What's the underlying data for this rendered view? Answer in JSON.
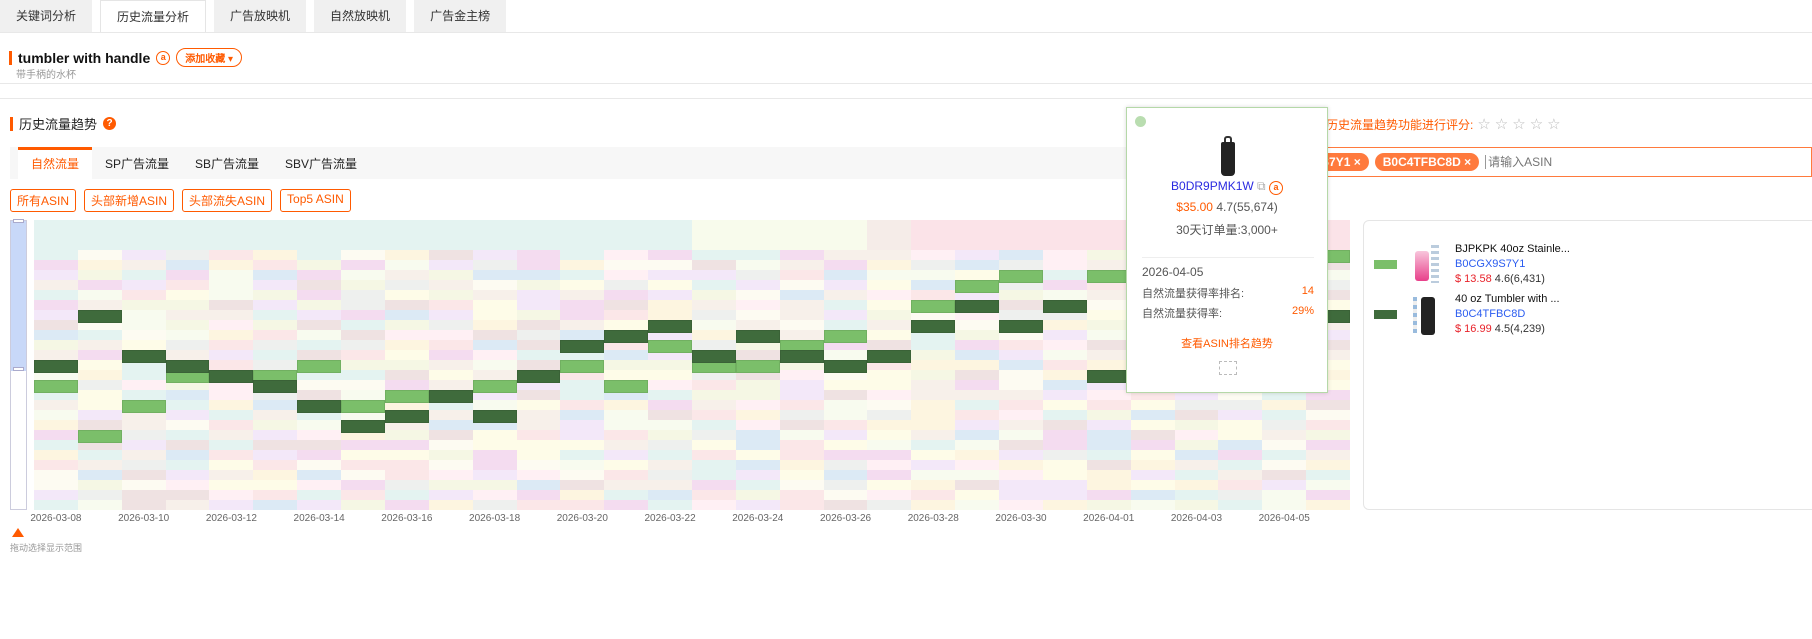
{
  "top_tabs": [
    {
      "label": "关键词分析"
    },
    {
      "label": "历史流量分析",
      "active": true
    },
    {
      "label": "广告放映机"
    },
    {
      "label": "自然放映机"
    },
    {
      "label": "广告金主榜"
    }
  ],
  "keyword": {
    "title": "tumbler with handle",
    "subtitle": "带手柄的水杯",
    "fav_label": "添加收藏 ▾",
    "amazon_icon": "a"
  },
  "section": {
    "title": "历史流量趋势",
    "help": "?"
  },
  "sub_tabs": [
    {
      "label": "自然流量",
      "active": true
    },
    {
      "label": "SP广告流量"
    },
    {
      "label": "SB广告流量"
    },
    {
      "label": "SBV广告流量"
    }
  ],
  "filters": [
    "所有ASIN",
    "头部新增ASIN",
    "头部流失ASIN",
    "Top5 ASIN"
  ],
  "rating": {
    "label": "历史流量趋势功能进行评分:",
    "stars": 5
  },
  "asin_input": {
    "tags": [
      "B0CGX9S7Y1",
      "B0C4TFBC8D"
    ],
    "placeholder": "请输入ASIN"
  },
  "slider_hint": "拖动选择显示范围",
  "colors": {
    "accent": "#ff5a00",
    "series_light": "#7bbf6a",
    "series_dark": "#3f6b3c"
  },
  "chart_data": {
    "type": "heatmap",
    "x": [
      "2026-03-08",
      "2026-03-09",
      "2026-03-10",
      "2026-03-11",
      "2026-03-12",
      "2026-03-13",
      "2026-03-14",
      "2026-03-15",
      "2026-03-16",
      "2026-03-17",
      "2026-03-18",
      "2026-03-19",
      "2026-03-20",
      "2026-03-21",
      "2026-03-22",
      "2026-03-23",
      "2026-03-24",
      "2026-03-25",
      "2026-03-26",
      "2026-03-27",
      "2026-03-28",
      "2026-03-29",
      "2026-03-30",
      "2026-03-31",
      "2026-04-01",
      "2026-04-02",
      "2026-04-03",
      "2026-04-04",
      "2026-04-05",
      "2026-04-06"
    ],
    "xticks": [
      "2026-03-08",
      "2026-03-10",
      "2026-03-12",
      "2026-03-14",
      "2026-03-16",
      "2026-03-18",
      "2026-03-20",
      "2026-03-22",
      "2026-03-24",
      "2026-03-26",
      "2026-03-28",
      "2026-03-30",
      "2026-04-01",
      "2026-04-03",
      "2026-04-05"
    ],
    "series": [
      {
        "name": "B0CGX9S7Y1",
        "color": "#7bbf6a",
        "rank": [
          14,
          19,
          16,
          13,
          13,
          13,
          12,
          16,
          15,
          15,
          14,
          13,
          12,
          14,
          10,
          12,
          12,
          10,
          9,
          11,
          6,
          4,
          3,
          6,
          3,
          4,
          3,
          2,
          2,
          1
        ]
      },
      {
        "name": "B0C4TFBC8D",
        "color": "#3f6b3c",
        "rank": [
          12,
          7,
          11,
          12,
          13,
          14,
          16,
          18,
          17,
          15,
          17,
          13,
          10,
          9,
          8,
          11,
          9,
          11,
          12,
          11,
          8,
          6,
          8,
          6,
          13,
          8,
          6,
          7,
          8,
          7
        ]
      }
    ]
  },
  "legend": [
    {
      "title": "BJPKPK 40oz Stainle...",
      "asin": "B0CGX9S7Y1",
      "price": "$ 13.58",
      "rating": "4.6(6,431)",
      "color": "#7bbf6a"
    },
    {
      "title": "40 oz Tumbler with ...",
      "asin": "B0C4TFBC8D",
      "price": "$ 16.99",
      "rating": "4.5(4,239)",
      "color": "#3f6b3c"
    }
  ],
  "tooltip": {
    "asin": "B0DR9PMK1W",
    "price": "$35.00",
    "rating": "4.7(55,674)",
    "orders": "30天订单量:3,000+",
    "date": "2026-04-05",
    "rank_label": "自然流量获得率排名:",
    "rank_value": "14",
    "rate_label": "自然流量获得率:",
    "rate_value": "29%",
    "link": "查看ASIN排名趋势"
  }
}
